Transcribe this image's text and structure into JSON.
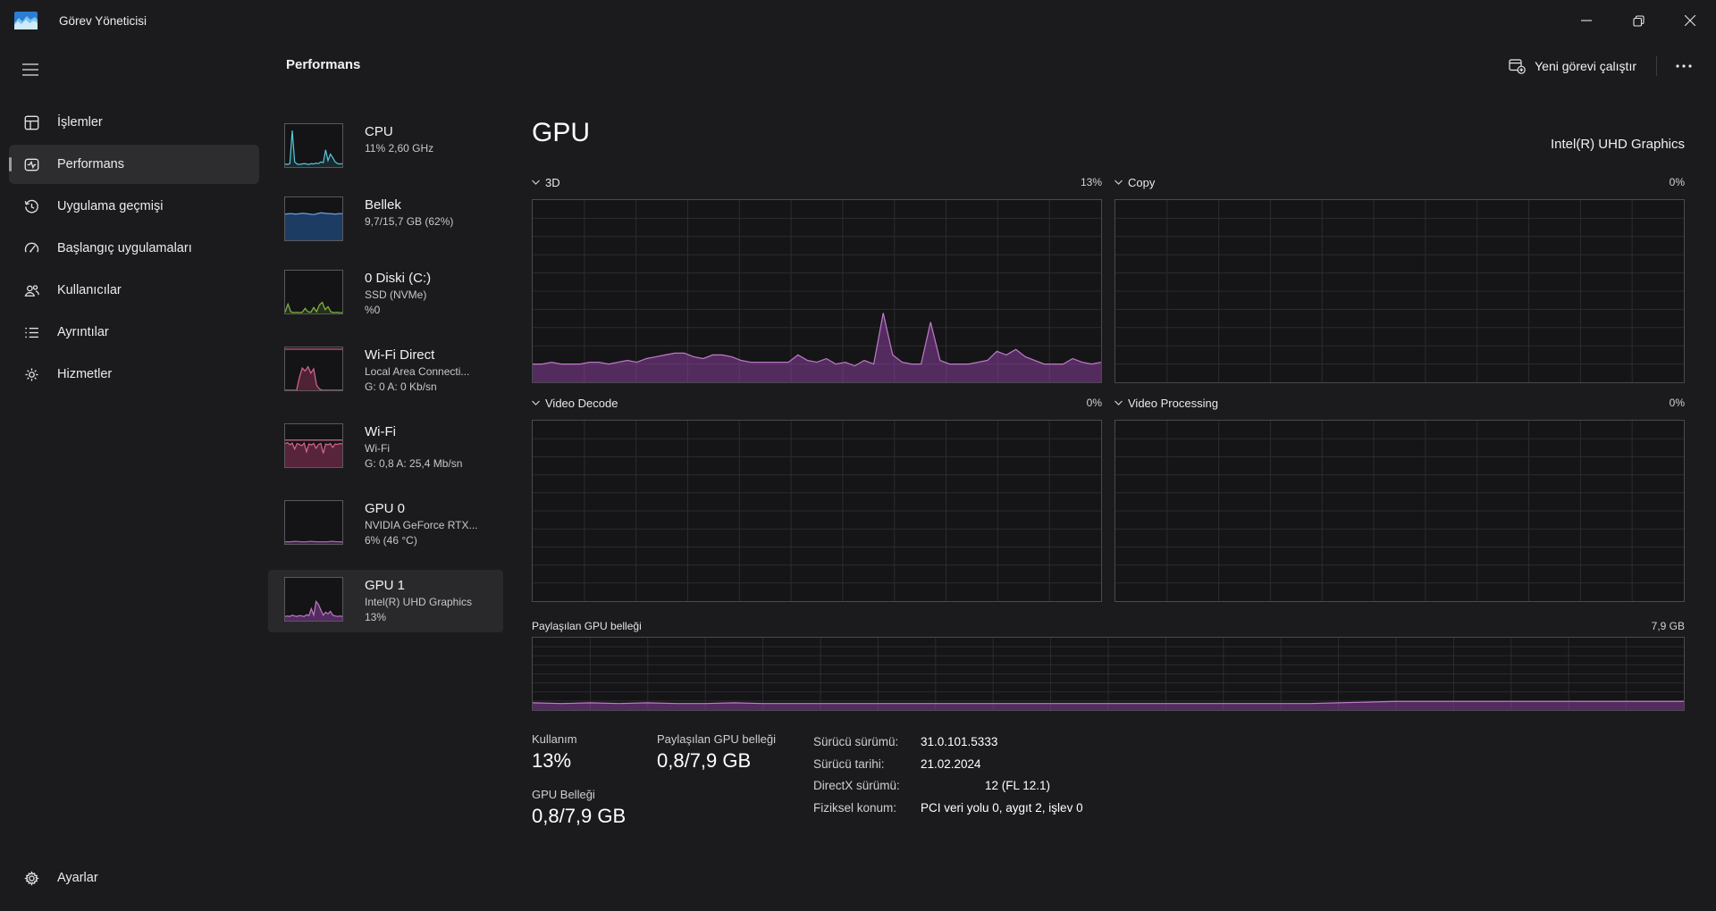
{
  "window": {
    "title": "Görev Yöneticisi"
  },
  "colors": {
    "purple_line": "#bd7cc8",
    "purple_fill": "rgba(147,66,167,0.5)",
    "cpu_line": "#56c8dc",
    "memory_line": "#6ba3de",
    "memory_fill": "#1d3c63",
    "disk_line": "#84b844",
    "network_line": "#d5688f",
    "selection_bg": "#2d2d30",
    "chart_bg": "#151517",
    "grid": "#2c2c30"
  },
  "sidebar": {
    "items": [
      {
        "label": "İşlemler"
      },
      {
        "label": "Performans"
      },
      {
        "label": "Uygulama geçmişi"
      },
      {
        "label": "Başlangıç uygulamaları"
      },
      {
        "label": "Kullanıcılar"
      },
      {
        "label": "Ayrıntılar"
      },
      {
        "label": "Hizmetler"
      }
    ],
    "settings_label": "Ayarlar"
  },
  "header": {
    "title": "Performans",
    "run_task_label": "Yeni görevi çalıştır"
  },
  "metrics": [
    {
      "name": "CPU",
      "line1": "11%  2,60 GHz",
      "line2": ""
    },
    {
      "name": "Bellek",
      "line1": "9,7/15,7 GB (62%)",
      "line2": ""
    },
    {
      "name": "0 Diski (C:)",
      "line1": "SSD (NVMe)",
      "line2": "%0"
    },
    {
      "name": "Wi-Fi Direct",
      "line1": "Local Area Connecti...",
      "line2": "G: 0 A: 0 Kb/sn"
    },
    {
      "name": "Wi-Fi",
      "line1": "Wi-Fi",
      "line2": "G: 0,8 A: 25,4 Mb/sn"
    },
    {
      "name": "GPU 0",
      "line1": "NVIDIA GeForce RTX...",
      "line2": "6% (46 °C)"
    },
    {
      "name": "GPU 1",
      "line1": "Intel(R) UHD Graphics",
      "line2": "13%"
    }
  ],
  "gpu": {
    "title": "GPU",
    "device_name": "Intel(R) UHD Graphics",
    "engines": [
      {
        "name": "3D",
        "value": "13%"
      },
      {
        "name": "Copy",
        "value": "0%"
      },
      {
        "name": "Video Decode",
        "value": "0%"
      },
      {
        "name": "Video Processing",
        "value": "0%"
      }
    ],
    "shared_memory_label": "Paylaşılan GPU belleği",
    "shared_memory_max": "7,9 GB",
    "usage_label": "Kullanım",
    "usage_value": "13%",
    "shared_mem_stat_label": "Paylaşılan GPU belleği",
    "shared_mem_stat_value": "0,8/7,9 GB",
    "gpu_mem_label": "GPU Belleği",
    "gpu_mem_value": "0,8/7,9 GB",
    "details": [
      {
        "label": "Sürücü sürümü:",
        "value": "31.0.101.5333"
      },
      {
        "label": "Sürücü tarihi:",
        "value": "21.02.2024"
      },
      {
        "label": "DirectX sürümü:",
        "value": "12 (FL 12.1)"
      },
      {
        "label": "Fiziksel konum:",
        "value": "PCI veri yolu 0, aygıt 2, işlev 0"
      }
    ]
  },
  "chart_data": {
    "gpu_3d": {
      "type": "area",
      "unit": "%",
      "ylim": [
        0,
        100
      ],
      "grid": {
        "cols": 11,
        "rows": 10,
        "color": "#2c2c30"
      },
      "series": [
        {
          "kind": "area",
          "color": "#bd7cc8",
          "fill": "rgba(147,66,167,0.5)",
          "points": [
            10,
            10,
            11,
            10,
            10,
            10,
            11,
            11,
            10,
            11,
            12,
            11,
            13,
            14,
            15,
            16,
            16,
            14,
            13,
            15,
            15,
            14,
            12,
            11,
            11,
            11,
            11,
            11,
            15,
            12,
            11,
            13,
            10,
            11,
            9,
            12,
            10,
            38,
            15,
            11,
            10,
            10,
            33,
            12,
            10,
            10,
            10,
            11,
            12,
            17,
            15,
            18,
            14,
            12,
            10,
            10,
            10,
            13,
            11,
            10,
            11
          ]
        }
      ]
    },
    "gpu_copy": {
      "type": "area",
      "unit": "%",
      "ylim": [
        0,
        100
      ],
      "grid": {
        "cols": 11,
        "rows": 10,
        "color": "#2c2c30"
      },
      "series": []
    },
    "video_decode": {
      "type": "area",
      "unit": "%",
      "ylim": [
        0,
        100
      ],
      "grid": {
        "cols": 11,
        "rows": 10,
        "color": "#2c2c30"
      },
      "series": []
    },
    "video_processing": {
      "type": "area",
      "unit": "%",
      "ylim": [
        0,
        100
      ],
      "grid": {
        "cols": 11,
        "rows": 10,
        "color": "#2c2c30"
      },
      "series": []
    },
    "shared_memory": {
      "type": "area",
      "unit": "GB",
      "ylim": [
        0,
        100
      ],
      "grid": {
        "cols": 20,
        "rows": 8,
        "color": "#2c2c30"
      },
      "series": [
        {
          "kind": "area",
          "color": "#bd7cc8",
          "fill": "rgba(147,66,167,0.5)",
          "points": [
            10,
            9,
            10,
            9,
            10,
            9,
            9,
            10,
            9,
            9,
            9,
            9,
            9,
            9,
            9,
            9,
            9,
            9,
            9,
            9,
            9,
            9,
            9,
            9,
            9,
            9,
            9,
            9,
            10,
            11,
            12,
            12,
            12,
            12,
            12,
            12,
            12,
            12,
            12,
            12,
            12
          ]
        }
      ]
    },
    "mini": {
      "cpu": {
        "series": [
          {
            "kind": "area",
            "color": "#56c8dc",
            "fill": "rgba(70,160,185,0.15)",
            "points": [
              7,
              6,
              8,
              85,
              12,
              7,
              6,
              7,
              8,
              7,
              6,
              8,
              7,
              9,
              8,
              12,
              10,
              40,
              15,
              30,
              22,
              12,
              8,
              7,
              8
            ]
          }
        ]
      },
      "memory": {
        "series": [
          {
            "kind": "area",
            "color": "#6ba3de",
            "fill": "#1d3c63",
            "points": [
              61,
              62,
              62,
              61,
              62,
              63,
              62,
              61,
              60,
              62,
              64,
              63,
              62,
              62,
              61,
              62,
              62
            ]
          }
        ]
      },
      "disk": {
        "series": [
          {
            "kind": "area",
            "color": "#84b844",
            "fill": "rgba(110,160,50,0.2)",
            "points": [
              3,
              22,
              4,
              2,
              3,
              2,
              3,
              12,
              4,
              3,
              14,
              4,
              20,
              26,
              9,
              16,
              4,
              2,
              3,
              2,
              2
            ]
          }
        ]
      },
      "wifi_direct": {
        "series": [
          {
            "kind": "line",
            "color": "#d5688f",
            "points": [
              96,
              96
            ]
          },
          {
            "kind": "area",
            "color": "#d5688f",
            "fill": "rgba(190,60,115,0.35)",
            "points": [
              0,
              0,
              0,
              0,
              0,
              30,
              52,
              45,
              55,
              40,
              50,
              12,
              3,
              0,
              0,
              0,
              0,
              0,
              0,
              0,
              0
            ]
          }
        ]
      },
      "wifi": {
        "series": [
          {
            "kind": "line",
            "color": "#d5688f",
            "points": [
              63,
              63
            ]
          },
          {
            "kind": "area",
            "color": "#d5688f",
            "fill": "rgba(190,60,115,0.4)",
            "points": [
              55,
              57,
              52,
              56,
              42,
              55,
              53,
              50,
              56,
              36,
              54,
              52,
              55,
              44,
              53,
              55,
              32,
              54,
              52,
              55,
              46,
              54,
              53,
              55,
              54
            ]
          }
        ]
      },
      "gpu0": {
        "series": [
          {
            "kind": "area",
            "color": "#a866ba",
            "fill": "rgba(147,66,167,0.35)",
            "points": [
              5,
              5,
              6,
              5,
              5,
              6,
              5,
              5,
              5,
              6,
              5,
              5
            ]
          }
        ]
      },
      "gpu1": {
        "series": [
          {
            "kind": "area",
            "color": "#bd7cc8",
            "fill": "rgba(147,66,167,0.5)",
            "points": [
              10,
              11,
              10,
              13,
              11,
              10,
              12,
              11,
              10,
              14,
              12,
              28,
              13,
              45,
              38,
              25,
              13,
              20,
              16,
              22,
              13,
              11,
              10,
              11,
              10
            ]
          }
        ]
      }
    }
  }
}
